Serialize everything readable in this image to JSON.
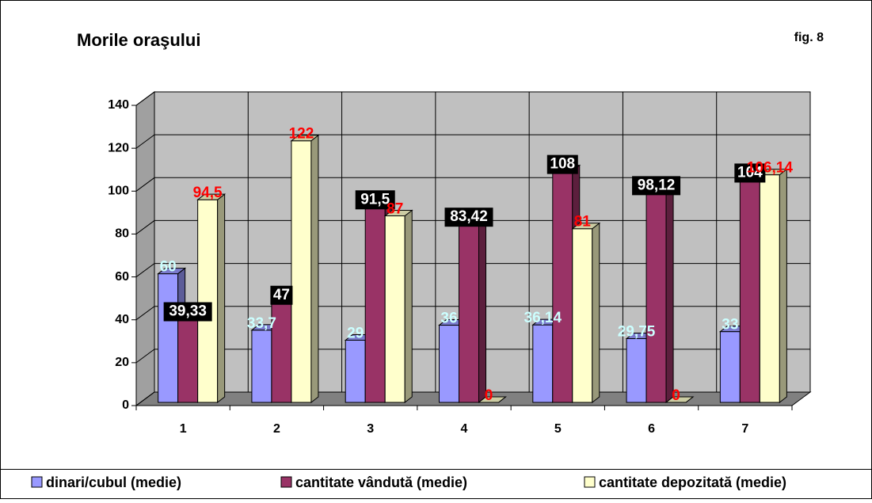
{
  "chart_data": {
    "type": "bar3d",
    "title": "Morile oraşului",
    "annotation": "fig. 8",
    "categories": [
      "1",
      "2",
      "3",
      "4",
      "5",
      "6",
      "7"
    ],
    "ylim": [
      0,
      140
    ],
    "yticks": [
      0,
      20,
      40,
      60,
      80,
      100,
      120,
      140
    ],
    "grid": true,
    "legend": "bottom",
    "series": [
      {
        "name": "dinari/cubul (medie)",
        "color": "#9999ff",
        "label_color": "#ccffff",
        "values": [
          60,
          33.7,
          29,
          36,
          36.14,
          29.75,
          33
        ],
        "value_labels": [
          "60",
          "33,7",
          "29",
          "36",
          "36,14",
          "29,75",
          "33"
        ]
      },
      {
        "name": "cantitate vândută (medie)",
        "color": "#993366",
        "label_color": "#ffffff",
        "label_box": "#000000",
        "values": [
          39.33,
          47,
          91.5,
          83.42,
          108,
          98.12,
          104
        ],
        "value_labels": [
          "39,33",
          "47",
          "91,5",
          "83,42",
          "108",
          "98,12",
          "104"
        ]
      },
      {
        "name": "cantitate depozitată (medie)",
        "color": "#ffffcc",
        "label_color": "#ff0000",
        "values": [
          94.5,
          122,
          87,
          0,
          81,
          0,
          106.14
        ],
        "value_labels": [
          "94,5",
          "122",
          "87",
          "0",
          "81",
          "0",
          "106,14"
        ]
      }
    ]
  }
}
